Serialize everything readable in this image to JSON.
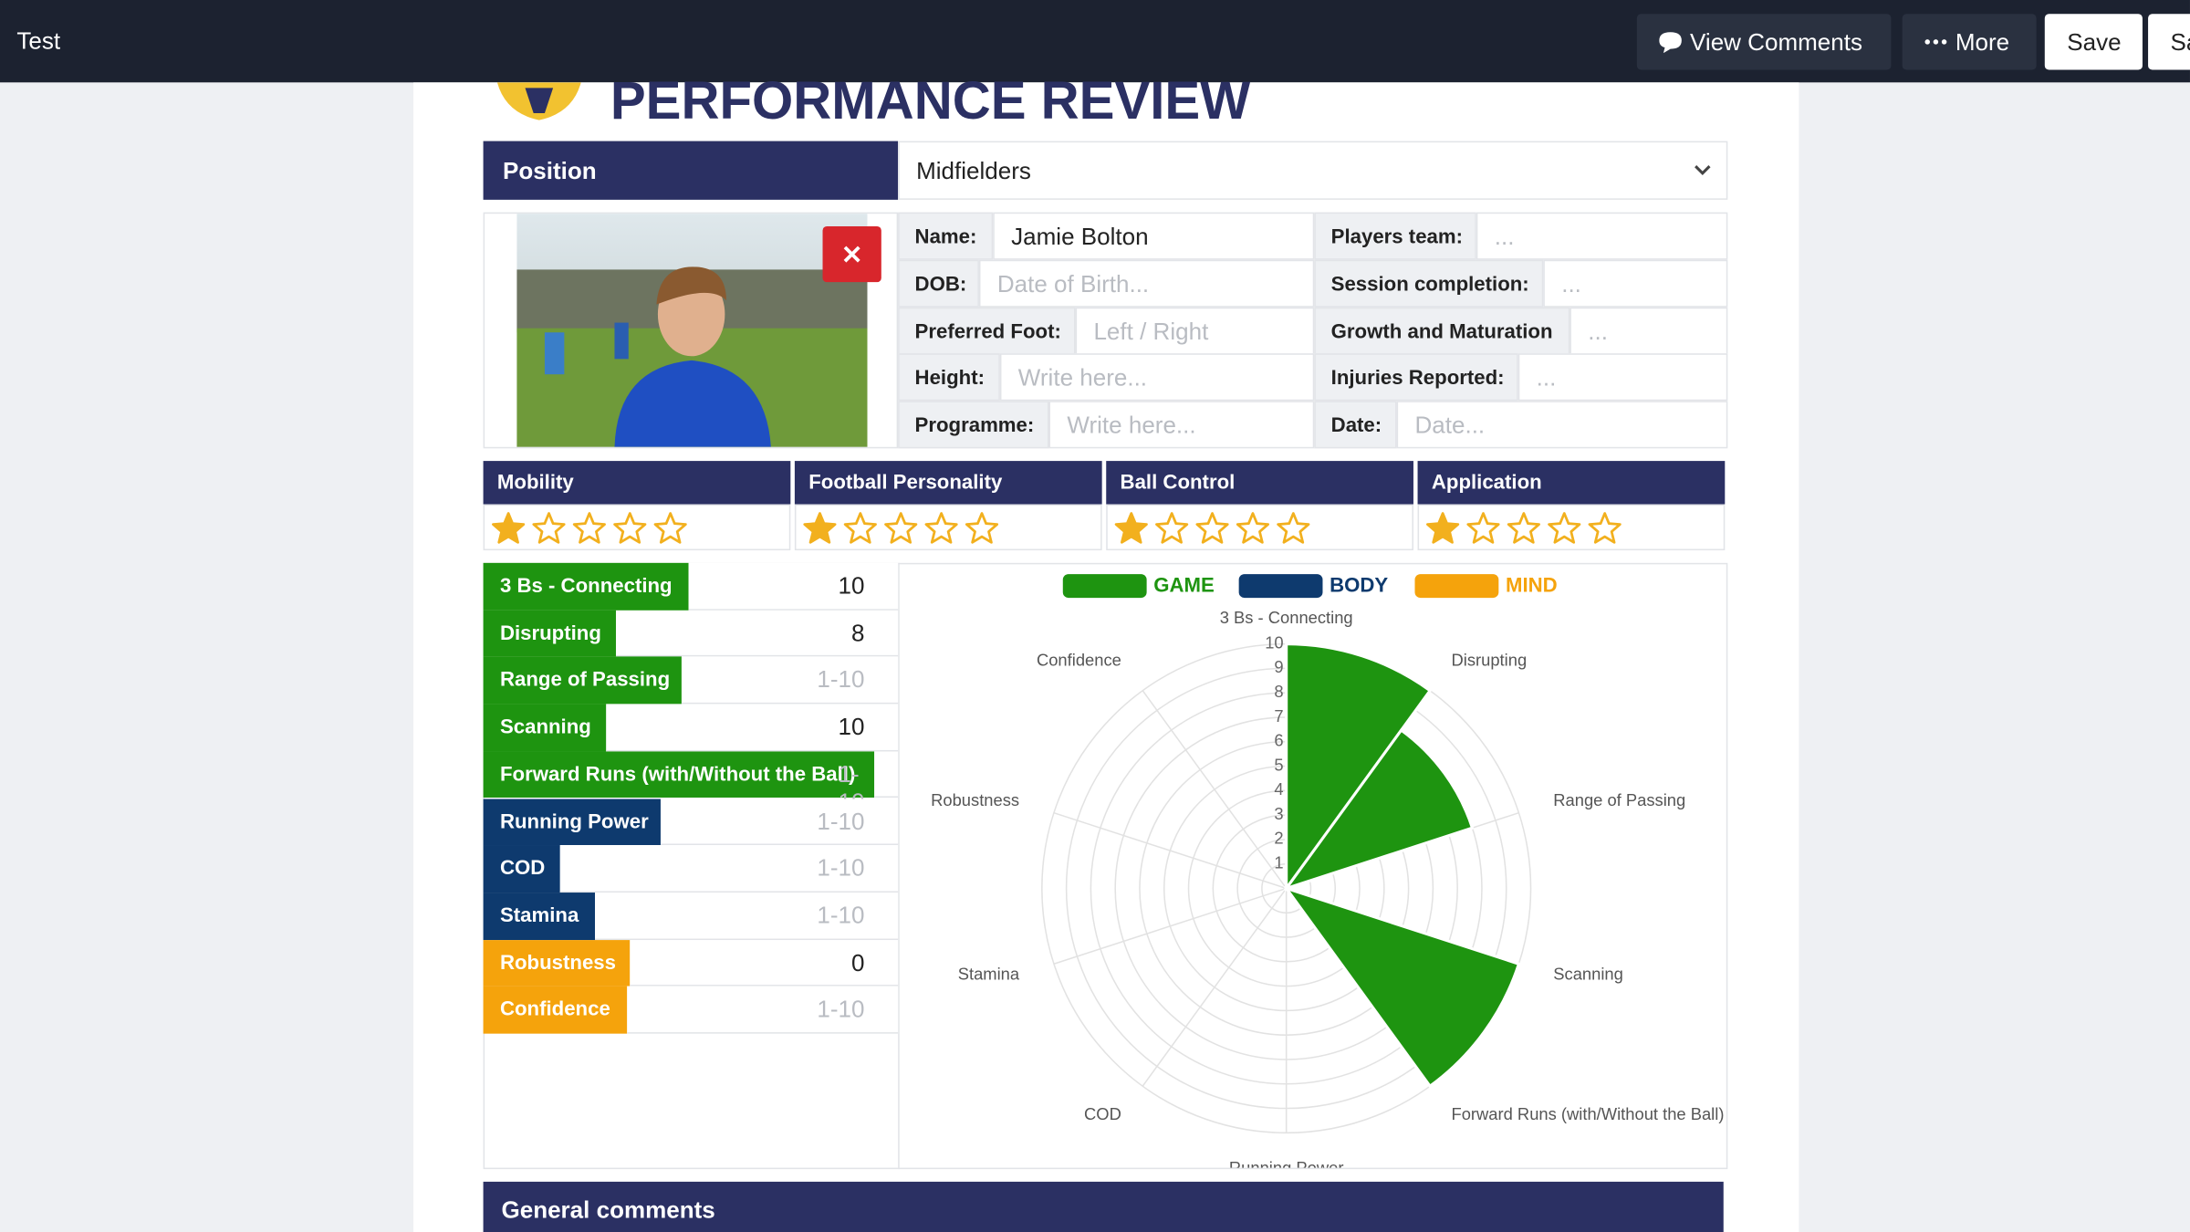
{
  "topbar": {
    "title": "Test",
    "buttons": [
      "View Comments",
      "More",
      "Save",
      "Sa"
    ]
  },
  "header": {
    "title": "PERFORMANCE REVIEW"
  },
  "position": {
    "label": "Position",
    "value": "Midfielders"
  },
  "profile": {
    "left_fields": [
      {
        "label": "Name:",
        "value": "Jamie Bolton"
      },
      {
        "label": "DOB:",
        "placeholder": "Date of Birth..."
      },
      {
        "label": "Preferred Foot:",
        "placeholder": "Left / Right"
      },
      {
        "label": "Height:",
        "placeholder": "Write here..."
      },
      {
        "label": "Programme:",
        "placeholder": "Write here..."
      }
    ],
    "right_fields": [
      {
        "label": "Players team:",
        "placeholder": "..."
      },
      {
        "label": "Session completion:",
        "placeholder": "..."
      },
      {
        "label": "Growth and Maturation",
        "placeholder": "..."
      },
      {
        "label": "Injuries Reported:",
        "placeholder": "..."
      },
      {
        "label": "Date:",
        "placeholder": "Date..."
      }
    ]
  },
  "ratings": {
    "max": 5,
    "items": [
      {
        "title": "Mobility",
        "value": 1
      },
      {
        "title": "Football Personality",
        "value": 1
      },
      {
        "title": "Ball Control",
        "value": 1
      },
      {
        "title": "Application",
        "value": 1
      }
    ]
  },
  "score_placeholder": "1-10",
  "chart_data": {
    "type": "polar_area",
    "legend": [
      {
        "name": "GAME",
        "color": "#1e9410"
      },
      {
        "name": "BODY",
        "color": "#0e3a6e"
      },
      {
        "name": "MIND",
        "color": "#f5a30c"
      }
    ],
    "categories": [
      "3 Bs - Connecting",
      "Disrupting",
      "Range of Passing",
      "Scanning",
      "Forward Runs (with/Without the Ball)",
      "Running Power",
      "COD",
      "Stamina",
      "Robustness",
      "Confidence"
    ],
    "values": [
      10,
      8,
      null,
      10,
      null,
      null,
      null,
      null,
      0,
      null
    ],
    "colors": [
      "#1e9410",
      "#1e9410",
      "#1e9410",
      "#1e9410",
      "#1e9410",
      "#0e3a6e",
      "#0e3a6e",
      "#0e3a6e",
      "#f5a30c",
      "#f5a30c"
    ],
    "rlim": [
      0,
      10
    ],
    "rticks": [
      1,
      2,
      3,
      4,
      5,
      6,
      7,
      8,
      9,
      10
    ],
    "grid": true
  },
  "comments": {
    "title": "General comments"
  }
}
